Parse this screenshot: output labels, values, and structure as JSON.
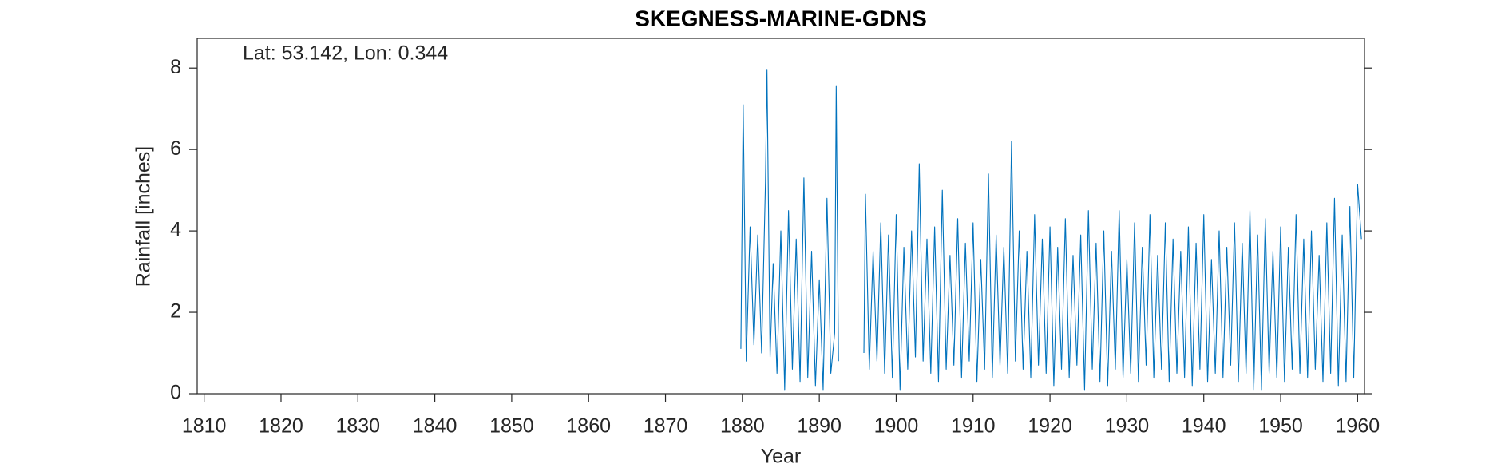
{
  "chart_data": {
    "type": "line",
    "title": "SKEGNESS-MARINE-GDNS",
    "annotation": "Lat: 53.142, Lon: 0.344",
    "x_label": "Year",
    "y_label": "Rainfall [inches]",
    "xlim": [
      1809.1,
      1960.9
    ],
    "ylim": [
      0,
      8.73
    ],
    "xticks": [
      1810,
      1820,
      1830,
      1840,
      1850,
      1860,
      1870,
      1880,
      1890,
      1900,
      1910,
      1920,
      1930,
      1940,
      1950,
      1960
    ],
    "yticks": [
      0,
      2,
      4,
      6,
      8
    ],
    "x": [
      1879.8,
      1880.1,
      1880.5,
      1881,
      1881.5,
      1882,
      1882.5,
      1883,
      1883.2,
      1883.6,
      1884,
      1884.5,
      1885,
      1885.5,
      1886,
      1886.5,
      1887,
      1887.5,
      1888,
      1888.5,
      1889,
      1889.5,
      1890,
      1890.5,
      1891,
      1891.5,
      1892,
      1892.2,
      1892.5,
      1894,
      1895.8,
      1896,
      1896.5,
      1897,
      1897.5,
      1898,
      1898.5,
      1899,
      1899.5,
      1900,
      1900.5,
      1901,
      1901.5,
      1902,
      1902.5,
      1903,
      1903.5,
      1904,
      1904.5,
      1905,
      1905.5,
      1906,
      1906.5,
      1907,
      1907.5,
      1908,
      1908.5,
      1909,
      1909.5,
      1910,
      1910.5,
      1911,
      1911.5,
      1912,
      1912.5,
      1913,
      1913.5,
      1914,
      1914.5,
      1915,
      1915.5,
      1916,
      1916.5,
      1917,
      1917.5,
      1918,
      1918.5,
      1919,
      1919.5,
      1920,
      1920.5,
      1921,
      1921.5,
      1922,
      1922.5,
      1923,
      1923.5,
      1924,
      1924.5,
      1925,
      1925.5,
      1926,
      1926.5,
      1927,
      1927.5,
      1928,
      1928.5,
      1929,
      1929.5,
      1930,
      1930.5,
      1931,
      1931.5,
      1932,
      1932.5,
      1933,
      1933.5,
      1934,
      1934.5,
      1935,
      1935.5,
      1936,
      1936.5,
      1937,
      1937.5,
      1938,
      1938.5,
      1939,
      1939.5,
      1940,
      1940.5,
      1941,
      1941.5,
      1942,
      1942.5,
      1943,
      1943.5,
      1944,
      1944.5,
      1945,
      1945.5,
      1946,
      1946.5,
      1947,
      1947.5,
      1948,
      1948.5,
      1949,
      1949.5,
      1950,
      1950.5,
      1951,
      1951.5,
      1952,
      1952.5,
      1953,
      1953.5,
      1954,
      1954.5,
      1955,
      1955.5,
      1956,
      1956.5,
      1957,
      1957.5,
      1958,
      1958.5,
      1959,
      1959.5,
      1960,
      1960.5
    ],
    "series": [
      {
        "color": "#0072bd",
        "values": [
          1.1,
          7.1,
          0.8,
          4.1,
          1.2,
          3.9,
          1.0,
          5.2,
          7.95,
          0.9,
          3.2,
          0.5,
          4.0,
          0.1,
          4.5,
          0.6,
          3.8,
          0.3,
          5.3,
          0.4,
          3.5,
          0.2,
          2.8,
          0.1,
          4.8,
          0.5,
          1.5,
          7.55,
          0.8,
          null,
          1.0,
          4.9,
          0.6,
          3.5,
          0.8,
          4.2,
          0.5,
          3.9,
          0.4,
          4.4,
          0.1,
          3.6,
          0.6,
          4.0,
          0.9,
          5.65,
          0.8,
          3.8,
          0.5,
          4.1,
          0.3,
          5.0,
          0.6,
          3.4,
          0.7,
          4.3,
          0.4,
          3.7,
          0.8,
          4.2,
          0.3,
          3.3,
          0.6,
          5.4,
          0.4,
          3.9,
          0.7,
          3.6,
          0.5,
          6.2,
          0.8,
          4.0,
          0.6,
          3.5,
          0.4,
          4.4,
          0.7,
          3.8,
          0.5,
          4.1,
          0.2,
          3.6,
          0.6,
          4.3,
          0.4,
          3.4,
          0.7,
          3.9,
          0.1,
          4.5,
          0.6,
          3.7,
          0.3,
          4.0,
          0.2,
          3.5,
          0.6,
          4.5,
          0.4,
          3.3,
          0.5,
          4.2,
          0.3,
          3.6,
          0.7,
          4.4,
          0.4,
          3.4,
          0.6,
          4.2,
          0.3,
          3.8,
          0.5,
          3.5,
          0.4,
          4.1,
          0.2,
          3.7,
          0.6,
          4.4,
          0.3,
          3.3,
          0.5,
          4.0,
          0.4,
          3.6,
          0.7,
          4.2,
          0.3,
          3.7,
          0.5,
          4.5,
          0.1,
          3.9,
          0.1,
          4.3,
          0.5,
          3.5,
          0.4,
          4.1,
          0.3,
          3.6,
          0.6,
          4.4,
          0.5,
          3.8,
          0.4,
          4.0,
          0.6,
          3.4,
          0.3,
          4.2,
          0.5,
          4.8,
          0.2,
          3.9,
          0.3,
          4.6,
          0.4,
          5.15,
          3.8
        ]
      }
    ]
  }
}
